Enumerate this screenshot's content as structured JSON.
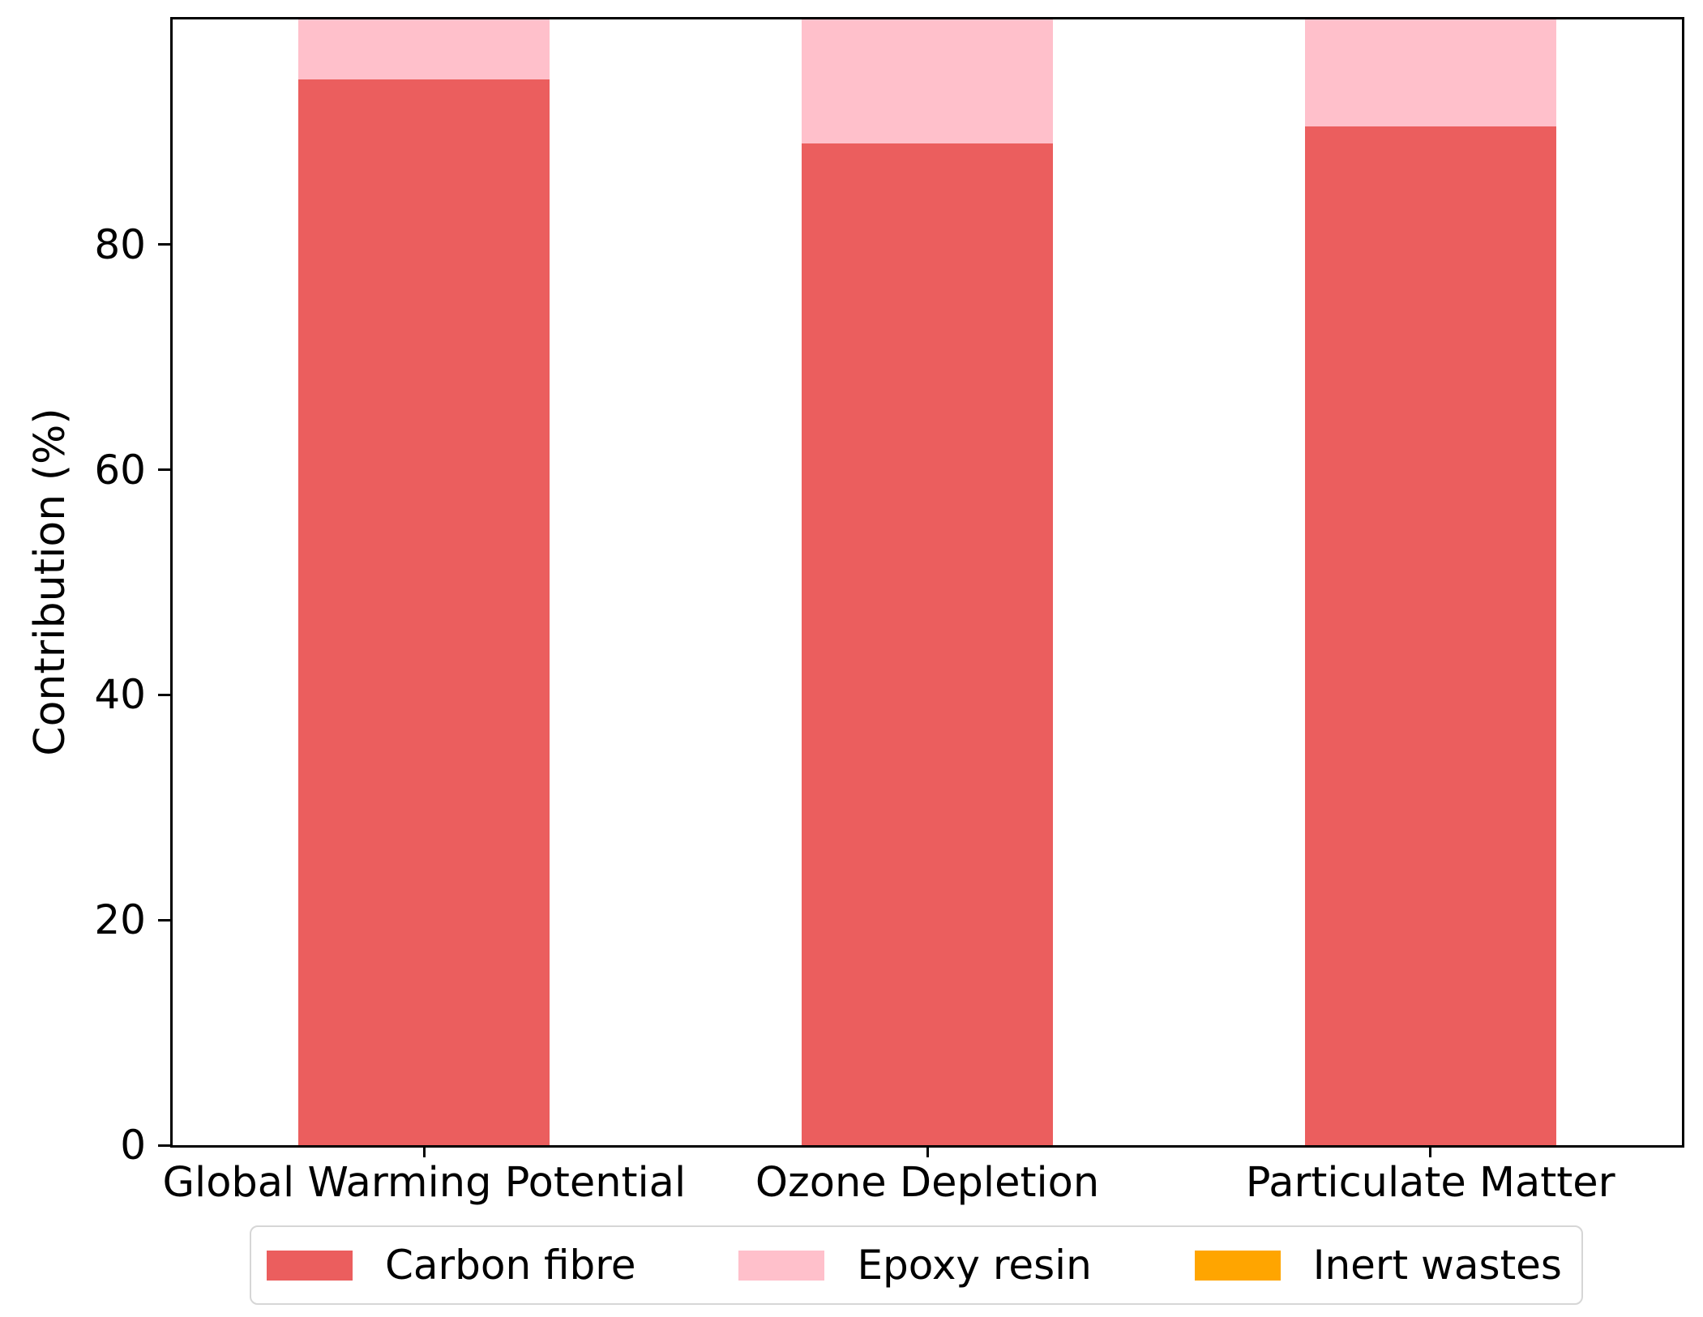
{
  "figure": {
    "background": "#ffffff",
    "axis_color": "#000000"
  },
  "chart_data": {
    "type": "bar",
    "stacked": true,
    "title": "",
    "xlabel": "",
    "ylabel": "Contribution (%)",
    "categories": [
      "Global Warming Potential",
      "Ozone Depletion",
      "Particulate Matter"
    ],
    "series": [
      {
        "name": "Carbon fibre",
        "color": "#eb5e5e",
        "values": [
          94.7,
          89.0,
          90.5
        ]
      },
      {
        "name": "Epoxy resin",
        "color": "#ffc0cb",
        "values": [
          5.3,
          11.0,
          9.5
        ]
      },
      {
        "name": "Inert wastes",
        "color": "#ffa500",
        "values": [
          0,
          0,
          0
        ]
      }
    ],
    "ylim": [
      0,
      100
    ],
    "yticks": [
      "0",
      "20",
      "40",
      "60",
      "80"
    ],
    "grid": false,
    "legend_position": "bottom",
    "bar_width_fraction": 0.5
  }
}
